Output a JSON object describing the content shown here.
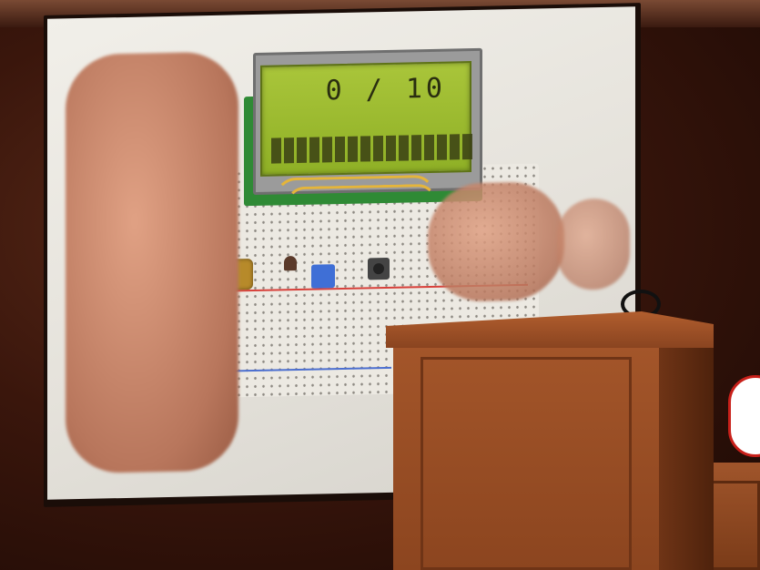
{
  "scene": {
    "lcd": {
      "counter_text": "0 / 10",
      "bar_segments": 16
    },
    "colors": {
      "lcd_backlight": "#9dbb2e",
      "pcb": "#2f8a35",
      "podium": "#9c5027",
      "wall": "#3a160c"
    }
  }
}
